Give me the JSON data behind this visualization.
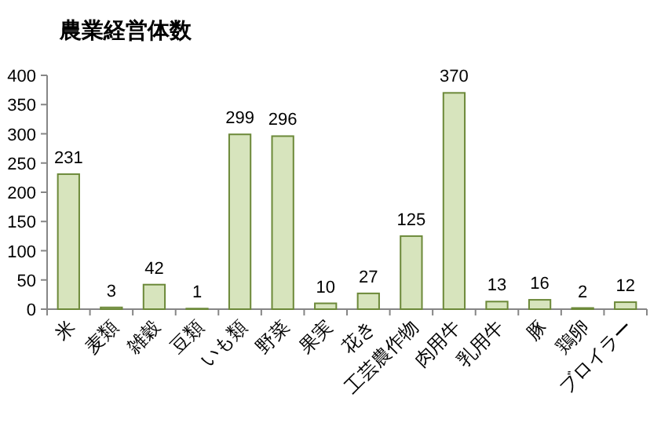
{
  "chart_data": {
    "type": "bar",
    "title": "農業経営体数",
    "categories": [
      "米",
      "麦類",
      "雑穀",
      "豆類",
      "いも類",
      "野菜",
      "果実",
      "花き",
      "工芸農作物",
      "肉用牛",
      "乳用牛",
      "豚",
      "鶏卵",
      "ブロイラー"
    ],
    "values": [
      231,
      3,
      42,
      1,
      299,
      296,
      10,
      27,
      125,
      370,
      13,
      16,
      2,
      12
    ],
    "color": "#d7e4bd",
    "ylim": [
      0,
      400
    ],
    "yticks": [
      0,
      50,
      100,
      150,
      200,
      250,
      300,
      350,
      400
    ],
    "data_labels": true,
    "grid": false
  }
}
